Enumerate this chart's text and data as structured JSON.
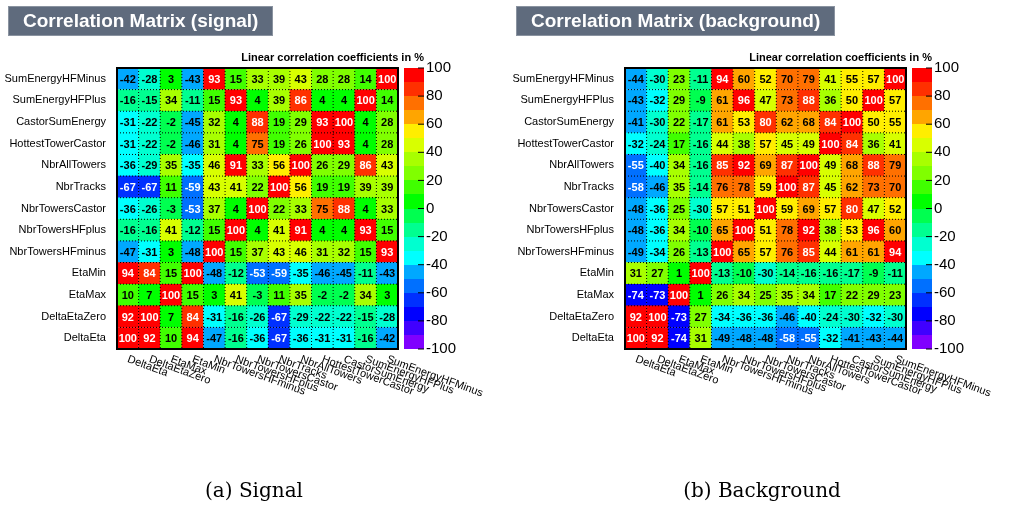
{
  "chart_data": [
    {
      "type": "heatmap",
      "title": "Correlation Matrix (signal)",
      "clabel": "Linear correlation coefficients in %",
      "categories": [
        "DeltaEta",
        "DeltaEtaZero",
        "EtaMax",
        "EtaMin",
        "NbrTowersHFminus",
        "NbrTowersHFplus",
        "NbrTowersCastor",
        "NbrTracks",
        "NbrAllTowers",
        "HottestTowerCastor",
        "CastorSumEnergy",
        "SumEnergyHFPlus",
        "SumEnergyHFMinus"
      ],
      "y_categories": [
        "SumEnergyHFMinus",
        "SumEnergyHFPlus",
        "CastorSumEnergy",
        "HottestTowerCastor",
        "NbrAllTowers",
        "NbrTracks",
        "NbrTowersCastor",
        "NbrTowersHFplus",
        "NbrTowersHFminus",
        "EtaMin",
        "EtaMax",
        "DeltaEtaZero",
        "DeltaEta"
      ],
      "cells": [
        [
          -42,
          -28,
          3,
          -43,
          93,
          15,
          33,
          39,
          43,
          28,
          28,
          14,
          100
        ],
        [
          -16,
          -15,
          34,
          -11,
          15,
          93,
          4,
          39,
          86,
          4,
          4,
          100,
          14
        ],
        [
          -31,
          -22,
          -2,
          -45,
          32,
          4,
          88,
          19,
          29,
          93,
          100,
          4,
          28
        ],
        [
          -31,
          -22,
          -2,
          -46,
          31,
          4,
          75,
          19,
          26,
          100,
          93,
          4,
          28
        ],
        [
          -36,
          -29,
          35,
          -35,
          46,
          91,
          33,
          56,
          100,
          26,
          29,
          86,
          43
        ],
        [
          -67,
          -67,
          11,
          -59,
          43,
          41,
          22,
          100,
          56,
          19,
          19,
          39,
          39
        ],
        [
          -36,
          -26,
          -3,
          -53,
          37,
          4,
          100,
          22,
          33,
          75,
          88,
          4,
          33
        ],
        [
          -16,
          -16,
          41,
          -12,
          15,
          100,
          4,
          41,
          91,
          4,
          4,
          93,
          15
        ],
        [
          -47,
          -31,
          3,
          -48,
          100,
          15,
          37,
          43,
          46,
          31,
          32,
          15,
          93
        ],
        [
          94,
          84,
          15,
          100,
          -48,
          -12,
          -53,
          -59,
          -35,
          -46,
          -45,
          -11,
          -43
        ],
        [
          10,
          7,
          100,
          15,
          3,
          41,
          -3,
          11,
          35,
          -2,
          -2,
          34,
          3
        ],
        [
          92,
          100,
          7,
          84,
          -31,
          -16,
          -26,
          -67,
          -29,
          -22,
          -22,
          -15,
          -28
        ],
        [
          100,
          92,
          10,
          94,
          -47,
          -16,
          -36,
          -67,
          -36,
          -31,
          -31,
          -16,
          -42
        ]
      ],
      "clim": [
        -100,
        100
      ],
      "cticks": [
        -100,
        -80,
        -60,
        -40,
        -20,
        0,
        20,
        40,
        60,
        80,
        100
      ],
      "data_labels": true,
      "grid": true,
      "annotations": [
        "(a) Signal"
      ]
    },
    {
      "type": "heatmap",
      "title": "Correlation Matrix (background)",
      "clabel": "Linear correlation coefficients in %",
      "categories": [
        "DeltaEta",
        "DeltaEtaZero",
        "EtaMax",
        "EtaMin",
        "NbrTowersHFminus",
        "NbrTowersHFplus",
        "NbrTowersCastor",
        "NbrTracks",
        "NbrAllTowers",
        "HottestTowerCastor",
        "CastorSumEnergy",
        "SumEnergyHFPlus",
        "SumEnergyHFMinus"
      ],
      "y_categories": [
        "SumEnergyHFMinus",
        "SumEnergyHFPlus",
        "CastorSumEnergy",
        "HottestTowerCastor",
        "NbrAllTowers",
        "NbrTracks",
        "NbrTowersCastor",
        "NbrTowersHFplus",
        "NbrTowersHFminus",
        "EtaMin",
        "EtaMax",
        "DeltaEtaZero",
        "DeltaEta"
      ],
      "cells": [
        [
          -44,
          -30,
          23,
          -11,
          94,
          60,
          52,
          70,
          79,
          41,
          55,
          57,
          100
        ],
        [
          -43,
          -32,
          29,
          -9,
          61,
          96,
          47,
          73,
          88,
          36,
          50,
          100,
          57
        ],
        [
          -41,
          -30,
          22,
          -17,
          61,
          53,
          80,
          62,
          68,
          84,
          100,
          50,
          55
        ],
        [
          -32,
          -24,
          17,
          -16,
          44,
          38,
          57,
          45,
          49,
          100,
          84,
          36,
          41
        ],
        [
          -55,
          -40,
          34,
          -16,
          85,
          92,
          69,
          87,
          100,
          49,
          68,
          88,
          79
        ],
        [
          -58,
          -46,
          35,
          -14,
          76,
          78,
          59,
          100,
          87,
          45,
          62,
          73,
          70
        ],
        [
          -48,
          -36,
          25,
          -30,
          57,
          51,
          100,
          59,
          69,
          57,
          80,
          47,
          52
        ],
        [
          -48,
          -36,
          34,
          -10,
          65,
          100,
          51,
          78,
          92,
          38,
          53,
          96,
          60
        ],
        [
          -49,
          -34,
          26,
          -13,
          100,
          65,
          57,
          76,
          85,
          44,
          61,
          61,
          94
        ],
        [
          31,
          27,
          1,
          100,
          -13,
          -10,
          -30,
          -14,
          -16,
          -16,
          -17,
          -9,
          -11
        ],
        [
          -74,
          -73,
          100,
          1,
          26,
          34,
          25,
          35,
          34,
          17,
          22,
          29,
          23
        ],
        [
          92,
          100,
          -73,
          27,
          -34,
          -36,
          -36,
          -46,
          -40,
          -24,
          -30,
          -32,
          -30
        ],
        [
          100,
          92,
          -74,
          31,
          -49,
          -48,
          -48,
          -58,
          -55,
          -32,
          -41,
          -43,
          -44
        ]
      ],
      "clim": [
        -100,
        100
      ],
      "cticks": [
        -100,
        -80,
        -60,
        -40,
        -20,
        0,
        20,
        40,
        60,
        80,
        100
      ],
      "data_labels": true,
      "grid": true,
      "annotations": [
        "(b) Background"
      ]
    }
  ]
}
